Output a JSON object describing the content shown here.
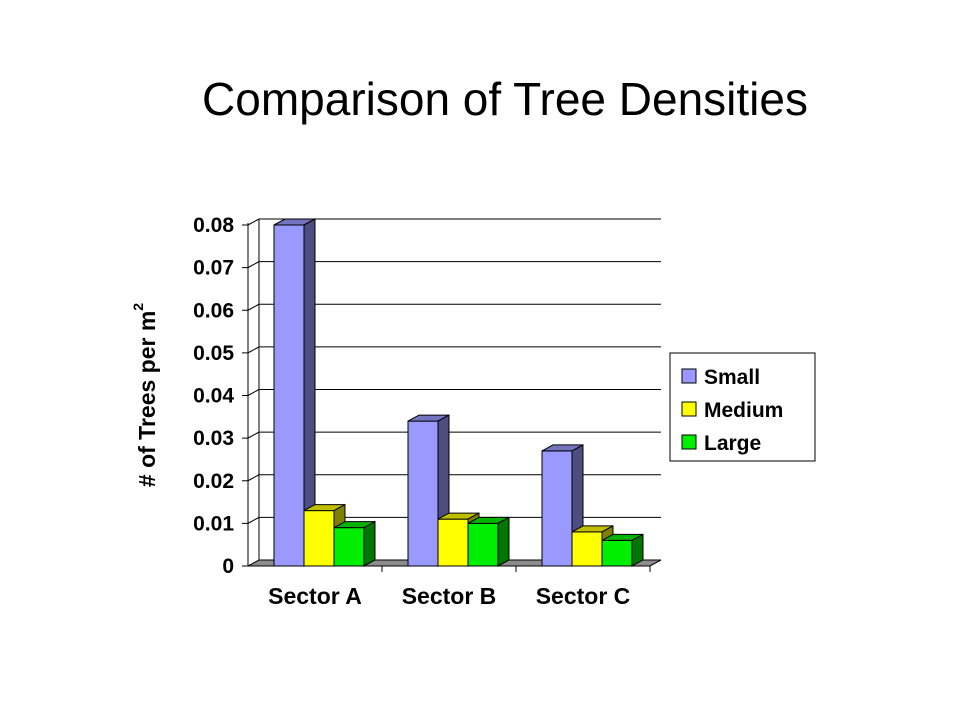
{
  "slide": {
    "title": "Comparison of Tree Densities"
  },
  "chart_data": {
    "type": "bar",
    "title": "",
    "xlabel": "",
    "ylabel": "# of Trees per m",
    "ylabel_superscript": "2",
    "categories": [
      "Sector A",
      "Sector B",
      "Sector C"
    ],
    "series": [
      {
        "name": "Small",
        "values": [
          0.08,
          0.034,
          0.027
        ],
        "color": "#9999ff"
      },
      {
        "name": "Medium",
        "values": [
          0.013,
          0.011,
          0.008
        ],
        "color": "#ffff00"
      },
      {
        "name": "Large",
        "values": [
          0.009,
          0.01,
          0.006
        ],
        "color": "#00ee00"
      }
    ],
    "ylim": [
      0,
      0.08
    ],
    "yticks": [
      "0",
      "0.01",
      "0.02",
      "0.03",
      "0.04",
      "0.05",
      "0.06",
      "0.07",
      "0.08"
    ],
    "grid": true,
    "legend_position": "right",
    "style": "3d-clustered-bar"
  }
}
